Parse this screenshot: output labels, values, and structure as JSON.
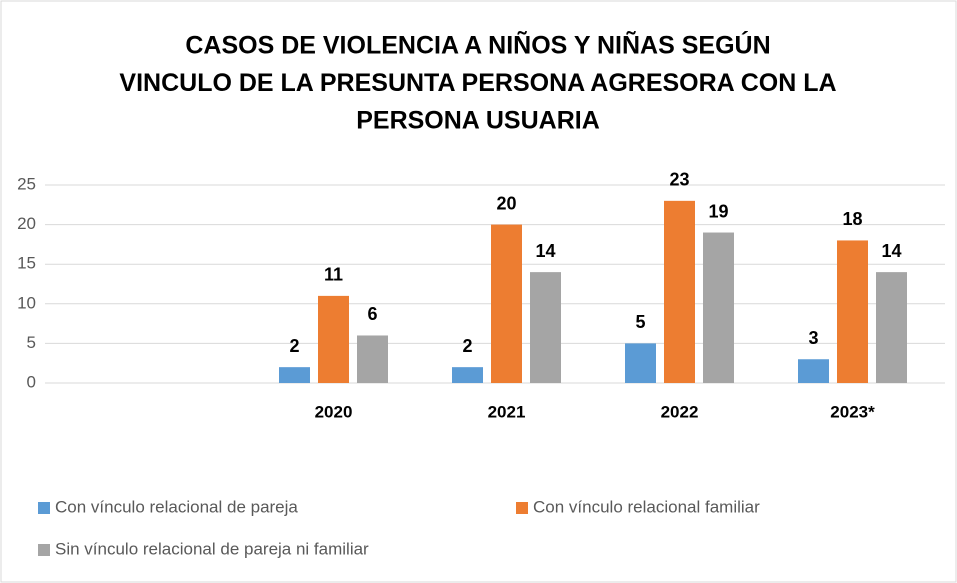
{
  "chart_data": {
    "type": "bar",
    "title": [
      "CASOS DE VIOLENCIA A NIÑOS Y NIÑAS SEGÚN",
      "VINCULO DE LA PRESUNTA PERSONA AGRESORA CON LA",
      "PERSONA USUARIA"
    ],
    "categories": [
      null,
      "2020",
      "2021",
      "2022",
      "2023*"
    ],
    "series": [
      {
        "name": "Con vínculo relacional de pareja",
        "color": "#5b9bd5",
        "values": [
          null,
          2,
          2,
          5,
          3
        ]
      },
      {
        "name": "Con vínculo relacional familiar",
        "color": "#ed7d31",
        "values": [
          null,
          11,
          20,
          23,
          18
        ]
      },
      {
        "name": "Sin vínculo relacional de pareja ni familiar",
        "color": "#a5a5a5",
        "values": [
          null,
          6,
          14,
          19,
          14
        ]
      }
    ],
    "ylim": [
      0,
      25
    ],
    "yticks": [
      0,
      5,
      10,
      15,
      20,
      25
    ],
    "grid": true,
    "legend": "bottom"
  }
}
